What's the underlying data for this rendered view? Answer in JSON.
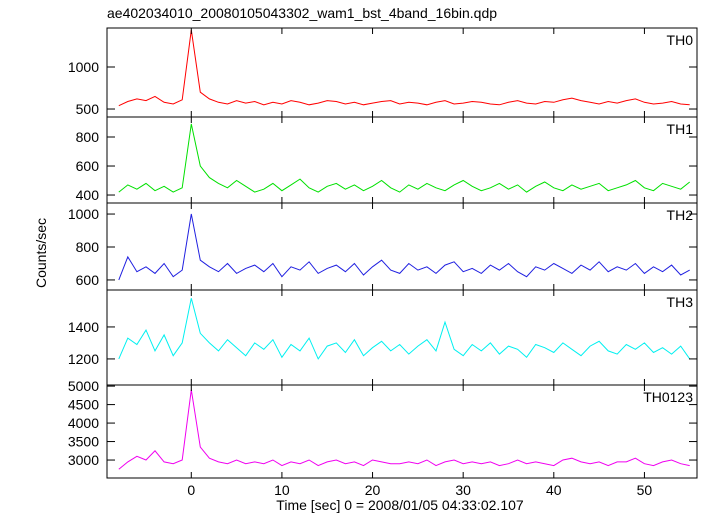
{
  "title": "ae402034010_20080105043302_wam1_bst_4band_16bin.qdp",
  "x_label": "Time [sec] 0 = 2008/01/05 04:33:02.107",
  "y_label": "Counts/sec",
  "xlim": [
    -9.3,
    55.8
  ],
  "xticks": [
    0,
    10,
    20,
    30,
    40,
    50
  ],
  "x": [
    -8,
    -7,
    -6,
    -5,
    -4,
    -3,
    -2,
    -1,
    0,
    1,
    2,
    3,
    4,
    5,
    6,
    7,
    8,
    9,
    10,
    11,
    12,
    13,
    14,
    15,
    16,
    17,
    18,
    19,
    20,
    21,
    22,
    23,
    24,
    25,
    26,
    27,
    28,
    29,
    30,
    31,
    32,
    33,
    34,
    35,
    36,
    37,
    38,
    39,
    40,
    41,
    42,
    43,
    44,
    45,
    46,
    47,
    48,
    49,
    50,
    51,
    52,
    53,
    54,
    55
  ],
  "chart_data": [
    {
      "type": "line",
      "label": "TH0",
      "color": "#ff0000",
      "ylim": [
        405,
        1464
      ],
      "yticks": [
        500,
        1000
      ],
      "values": [
        540,
        590,
        620,
        600,
        650,
        580,
        560,
        610,
        1440,
        700,
        620,
        580,
        560,
        600,
        570,
        590,
        550,
        580,
        560,
        600,
        580,
        550,
        570,
        600,
        590,
        560,
        580,
        550,
        570,
        590,
        600,
        560,
        580,
        570,
        550,
        580,
        600,
        560,
        570,
        590,
        580,
        560,
        550,
        580,
        600,
        570,
        560,
        590,
        580,
        610,
        630,
        600,
        580,
        560,
        590,
        570,
        600,
        620,
        580,
        560,
        570,
        590,
        560,
        550
      ]
    },
    {
      "type": "line",
      "label": "TH1",
      "color": "#00e000",
      "ylim": [
        345,
        938
      ],
      "yticks": [
        400,
        600,
        800
      ],
      "values": [
        420,
        470,
        440,
        480,
        430,
        460,
        420,
        450,
        890,
        600,
        520,
        480,
        450,
        500,
        460,
        420,
        440,
        480,
        430,
        470,
        510,
        450,
        420,
        460,
        480,
        440,
        470,
        430,
        460,
        500,
        450,
        420,
        470,
        440,
        480,
        450,
        430,
        470,
        500,
        460,
        430,
        450,
        480,
        440,
        470,
        420,
        460,
        490,
        450,
        430,
        470,
        440,
        460,
        480,
        430,
        450,
        470,
        500,
        450,
        430,
        480,
        460,
        440,
        490
      ]
    },
    {
      "type": "line",
      "label": "TH2",
      "color": "#2020e0",
      "ylim": [
        539,
        1067
      ],
      "yticks": [
        600,
        800,
        1000
      ],
      "values": [
        600,
        740,
        650,
        680,
        640,
        700,
        620,
        660,
        1000,
        720,
        680,
        650,
        700,
        640,
        670,
        690,
        650,
        700,
        620,
        680,
        660,
        710,
        640,
        670,
        690,
        650,
        700,
        630,
        680,
        720,
        660,
        640,
        700,
        660,
        680,
        640,
        690,
        710,
        650,
        670,
        640,
        690,
        660,
        700,
        650,
        620,
        680,
        660,
        700,
        670,
        640,
        690,
        660,
        710,
        650,
        680,
        660,
        700,
        640,
        680,
        650,
        690,
        630,
        660
      ]
    },
    {
      "type": "line",
      "label": "TH3",
      "color": "#00f0f0",
      "ylim": [
        1037,
        1631
      ],
      "yticks": [
        1200,
        1400
      ],
      "values": [
        1200,
        1330,
        1290,
        1380,
        1250,
        1350,
        1220,
        1300,
        1580,
        1360,
        1300,
        1250,
        1320,
        1270,
        1220,
        1300,
        1260,
        1320,
        1210,
        1290,
        1250,
        1330,
        1200,
        1280,
        1300,
        1240,
        1320,
        1220,
        1270,
        1310,
        1250,
        1290,
        1230,
        1280,
        1320,
        1250,
        1430,
        1260,
        1220,
        1290,
        1250,
        1300,
        1230,
        1280,
        1260,
        1210,
        1290,
        1270,
        1240,
        1300,
        1260,
        1220,
        1280,
        1310,
        1250,
        1230,
        1290,
        1260,
        1300,
        1240,
        1270,
        1230,
        1280,
        1200
      ]
    },
    {
      "type": "line",
      "label": "TH0123",
      "color": "#f000f0",
      "ylim": [
        2514,
        5030
      ],
      "yticks": [
        3000,
        3500,
        4000,
        4500,
        5000
      ],
      "values": [
        2750,
        2950,
        3100,
        3000,
        3250,
        2950,
        2900,
        3000,
        4900,
        3350,
        3050,
        2950,
        2900,
        3000,
        2900,
        2950,
        2900,
        3000,
        2850,
        2950,
        2900,
        3000,
        2850,
        2950,
        3000,
        2900,
        2950,
        2850,
        3000,
        2950,
        2900,
        2900,
        2950,
        2900,
        3000,
        2850,
        2950,
        3000,
        2900,
        2950,
        2900,
        2950,
        2850,
        2900,
        3000,
        2900,
        2950,
        2900,
        2850,
        3000,
        3050,
        2950,
        2900,
        2950,
        2850,
        2950,
        2950,
        3050,
        2900,
        2850,
        2950,
        3000,
        2900,
        2850
      ]
    }
  ]
}
